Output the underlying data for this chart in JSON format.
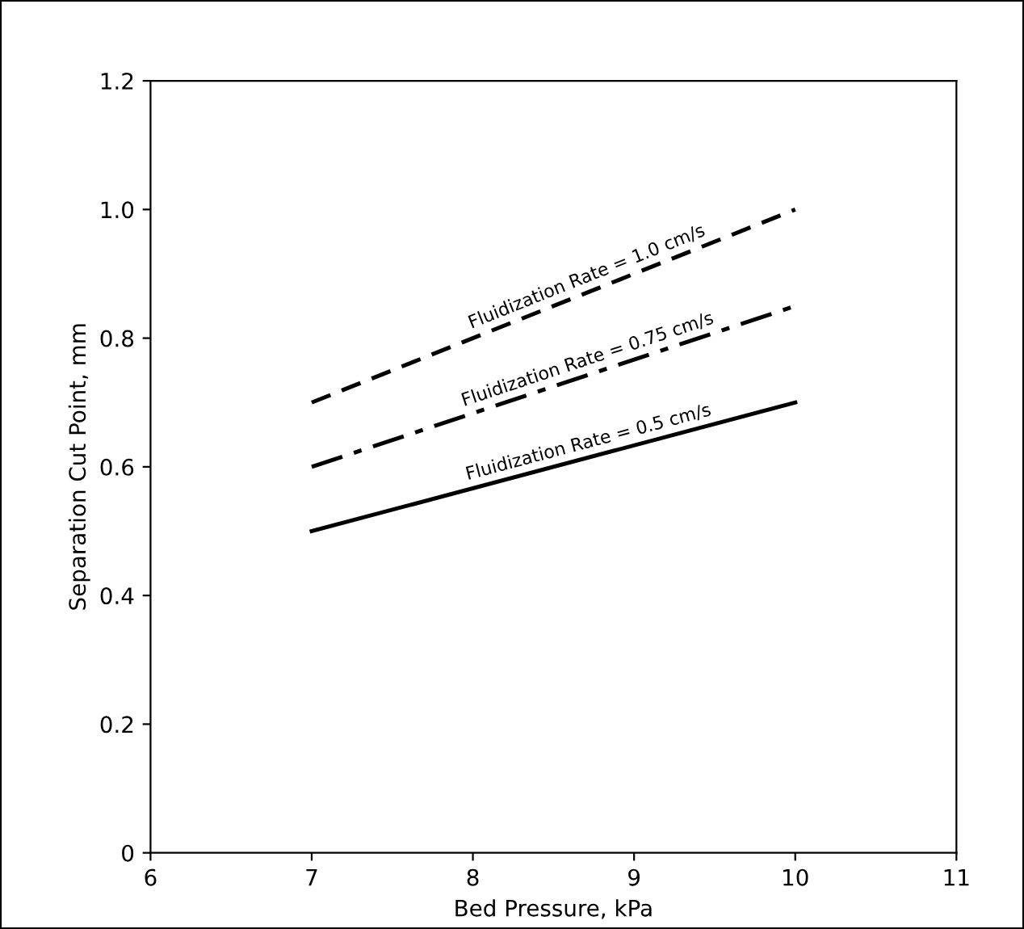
{
  "chart_data": {
    "type": "line",
    "xlabel": "Bed Pressure, kPa",
    "ylabel": "Separation Cut Point, mm",
    "x": [
      7,
      10
    ],
    "series": [
      {
        "name": "Fluidization Rate = 1.0 cm/s",
        "color": "#000000",
        "line_style": "dashed",
        "values": [
          0.7,
          1.0
        ]
      },
      {
        "name": "Fluidization Rate = 0.75 cm/s",
        "color": "#000000",
        "line_style": "dashdot",
        "values": [
          0.6,
          0.85
        ]
      },
      {
        "name": "Fluidization Rate = 0.5 cm/s",
        "color": "#000000",
        "line_style": "solid",
        "values": [
          0.5,
          0.7
        ]
      }
    ],
    "xlim": [
      6,
      11
    ],
    "ylim": [
      0,
      1.2
    ],
    "xticks": [
      6,
      7,
      8,
      9,
      10,
      11
    ],
    "yticks": [
      0,
      0.2,
      0.4,
      0.6,
      0.8,
      {
        "value": 1.0,
        "label": "1.0"
      },
      1.2
    ],
    "grid": false,
    "legend": false,
    "marker": "none"
  }
}
